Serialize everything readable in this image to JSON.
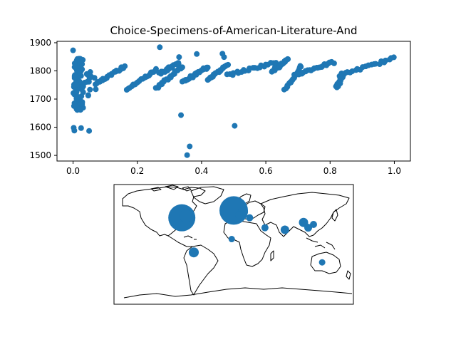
{
  "chart_data": [
    {
      "type": "scatter",
      "title": "Choice-Specimens-of-American-Literature-And",
      "xlabel": "",
      "ylabel": "",
      "xlim": [
        -0.05,
        1.05
      ],
      "ylim": [
        1480,
        1905
      ],
      "xticks": [
        0.0,
        0.2,
        0.4,
        0.6,
        0.8,
        1.0
      ],
      "xtick_labels": [
        "0.0",
        "0.2",
        "0.4",
        "0.6",
        "0.8",
        "1.0"
      ],
      "yticks": [
        1500,
        1600,
        1700,
        1800,
        1900
      ],
      "ytick_labels": [
        "1500",
        "1600",
        "1700",
        "1800",
        "1900"
      ],
      "color": "#1f77b4",
      "outliers": {
        "x": [
          0.002,
          0.004,
          0.025,
          0.05,
          0.336,
          0.355,
          0.363,
          0.503,
          0.0,
          0.27,
          0.33,
          0.385,
          0.465,
          0.47
        ],
        "y": [
          1598,
          1588,
          1597,
          1587,
          1643,
          1501,
          1532,
          1605,
          1873,
          1884,
          1849,
          1860,
          1861,
          1849
        ]
      },
      "dense_clusters": [
        {
          "x_start": 0.003,
          "x_end": 0.03,
          "y_start": 1660,
          "y_end": 1845,
          "count": 90,
          "jitter": 0.006
        },
        {
          "x_start": 0.03,
          "x_end": 0.07,
          "y_start": 1700,
          "y_end": 1800,
          "count": 14,
          "jitter": 0.005
        }
      ],
      "x_range_start": 0.07,
      "x_range_end": 1.0,
      "segments": [
        {
          "x0": 0.07,
          "y0": 1755,
          "x1": 0.16,
          "y1": 1815
        },
        {
          "x0": 0.17,
          "y0": 1735,
          "x1": 0.26,
          "y1": 1805
        },
        {
          "x0": 0.26,
          "y0": 1740,
          "x1": 0.34,
          "y1": 1815
        },
        {
          "x0": 0.27,
          "y0": 1790,
          "x1": 0.33,
          "y1": 1830
        },
        {
          "x0": 0.34,
          "y0": 1760,
          "x1": 0.42,
          "y1": 1815
        },
        {
          "x0": 0.42,
          "y0": 1770,
          "x1": 0.48,
          "y1": 1820
        },
        {
          "x0": 0.48,
          "y0": 1785,
          "x1": 0.63,
          "y1": 1830
        },
        {
          "x0": 0.62,
          "y0": 1800,
          "x1": 0.67,
          "y1": 1840
        },
        {
          "x0": 0.66,
          "y0": 1735,
          "x1": 0.71,
          "y1": 1815
        },
        {
          "x0": 0.7,
          "y0": 1790,
          "x1": 0.81,
          "y1": 1830
        },
        {
          "x0": 0.82,
          "y0": 1740,
          "x1": 0.84,
          "y1": 1785
        },
        {
          "x0": 0.83,
          "y0": 1785,
          "x1": 1.0,
          "y1": 1845
        }
      ],
      "points_per_segment": 22
    },
    {
      "type": "geo-bubble",
      "title": "",
      "projection": "equirectangular",
      "bubbles": [
        {
          "lon": -78,
          "lat": 40,
          "size": 38
        },
        {
          "lon": -84,
          "lat": 45,
          "size": 22
        },
        {
          "lon": -72,
          "lat": 43,
          "size": 18
        },
        {
          "lon": 0,
          "lat": 51,
          "size": 40
        },
        {
          "lon": 14,
          "lat": 49,
          "size": 14
        },
        {
          "lon": 8,
          "lat": 44,
          "size": 11
        },
        {
          "lon": 24,
          "lat": 40,
          "size": 10
        },
        {
          "lon": -60,
          "lat": -12,
          "size": 14
        },
        {
          "lon": -3,
          "lat": 8,
          "size": 9
        },
        {
          "lon": 47,
          "lat": 25,
          "size": 10
        },
        {
          "lon": 77,
          "lat": 22,
          "size": 12
        },
        {
          "lon": 105,
          "lat": 33,
          "size": 13
        },
        {
          "lon": 112,
          "lat": 25,
          "size": 11
        },
        {
          "lon": 120,
          "lat": 30,
          "size": 10
        },
        {
          "lon": 133,
          "lat": -27,
          "size": 9
        }
      ],
      "color": "#1f77b4",
      "coastline_color": "#000000"
    }
  ]
}
